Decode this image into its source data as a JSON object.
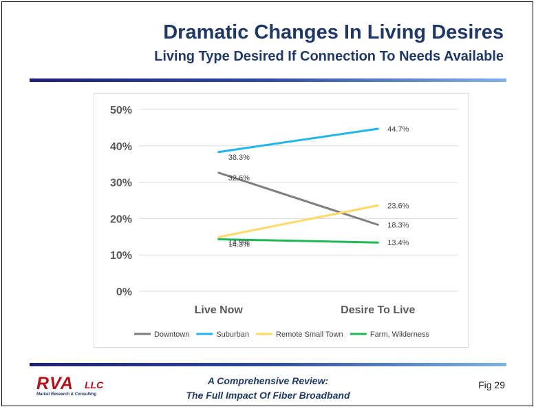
{
  "slide": {
    "title": "Dramatic Changes In Living Desires",
    "subtitle": "Living Type Desired If Connection To Needs Available"
  },
  "footer": {
    "logo_main": "RVA",
    "logo_suffix": "LLC",
    "logo_tagline": "Market Research & Consulting",
    "review_line1": "A Comprehensive  Review:",
    "review_line2": "The Full Impact Of Fiber Broadband",
    "figure_label": "Fig 29"
  },
  "chart_data": {
    "type": "line",
    "categories": [
      "Live Now",
      "Desire To Live"
    ],
    "ylim": [
      0,
      50
    ],
    "yticks": [
      0,
      10,
      20,
      30,
      40,
      50
    ],
    "ytick_labels": [
      "0%",
      "10%",
      "20%",
      "30%",
      "40%",
      "50%"
    ],
    "grid": true,
    "legend_position": "bottom",
    "series": [
      {
        "name": "Downtown",
        "values": [
          32.6,
          18.3
        ],
        "labels": [
          "32.6%",
          "18.3%"
        ],
        "color": "#7f7f7f"
      },
      {
        "name": "Suburban",
        "values": [
          38.3,
          44.7
        ],
        "labels": [
          "38.3%",
          "44.7%"
        ],
        "color": "#1fb5f0"
      },
      {
        "name": "Remote Small Town",
        "values": [
          14.9,
          23.6
        ],
        "labels": [
          "14.9%",
          "23.6%"
        ],
        "color": "#ffd966"
      },
      {
        "name": "Farm, Wilderness",
        "values": [
          14.3,
          13.4
        ],
        "labels": [
          "14.3%",
          "13.4%"
        ],
        "color": "#1db954"
      }
    ]
  }
}
